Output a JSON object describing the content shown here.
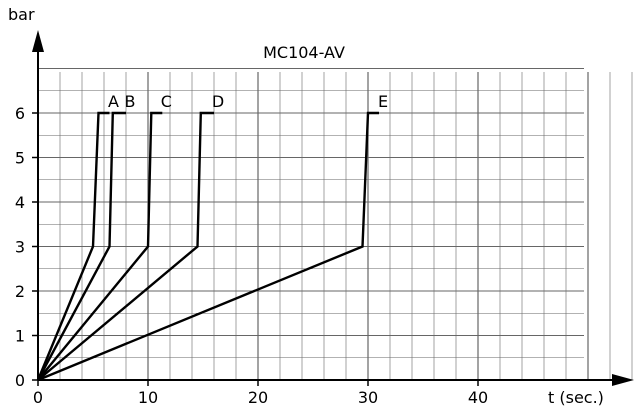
{
  "chart_data": {
    "type": "line",
    "title": "MC104-AV",
    "ylabel": "bar",
    "xlabel": "t (sec.)",
    "xlim": [
      0,
      54
    ],
    "ylim": [
      0,
      7
    ],
    "x_ticks": [
      0,
      10,
      20,
      30,
      40
    ],
    "y_ticks": [
      0,
      1,
      2,
      3,
      4,
      5,
      6
    ],
    "x_tick_labels": [
      "0",
      "10",
      "20",
      "30",
      "40"
    ],
    "y_tick_labels": [
      "0",
      "1",
      "2",
      "3",
      "4",
      "5",
      "6"
    ],
    "grid": true,
    "legend": "none",
    "series": [
      {
        "name": "A",
        "x": [
          0,
          5.0,
          5.5,
          6.5
        ],
        "y": [
          0,
          3,
          6,
          6
        ]
      },
      {
        "name": "B",
        "x": [
          0,
          6.5,
          6.8,
          8.0
        ],
        "y": [
          0,
          3,
          6,
          6
        ]
      },
      {
        "name": "C",
        "x": [
          0,
          10.0,
          10.3,
          11.3
        ],
        "y": [
          0,
          3,
          6,
          6
        ]
      },
      {
        "name": "D",
        "x": [
          0,
          14.5,
          14.8,
          16.0
        ],
        "y": [
          0,
          3,
          6,
          6
        ]
      },
      {
        "name": "E",
        "x": [
          0,
          29.5,
          30.0,
          31.0
        ],
        "y": [
          0,
          3,
          6,
          6
        ]
      }
    ],
    "colors": {
      "line": "#000000",
      "grid": "#666666",
      "background": "#ffffff"
    }
  }
}
